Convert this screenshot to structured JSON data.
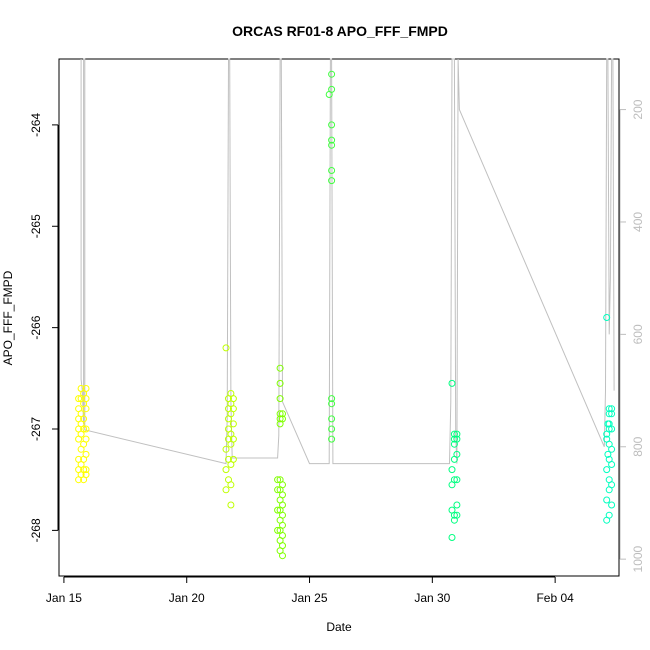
{
  "chart_data": {
    "type": "scatter",
    "title": "ORCAS RF01-8 APO_FFF_FMPD",
    "xlabel": "Date",
    "ylabel": "APO_FFF_FMPD",
    "x_tick_labels": [
      "Jan 15",
      "Jan 20",
      "Jan 25",
      "Jan 30",
      "Feb 04"
    ],
    "x_tick_values": [
      15,
      20,
      25,
      30,
      35
    ],
    "xlim": [
      14.8,
      37.6
    ],
    "y_ticks": [
      -264,
      -265,
      -266,
      -267,
      -268
    ],
    "ylim": [
      -268.45,
      -263.35
    ],
    "y2_ticks": [
      200,
      400,
      600,
      800,
      1000
    ],
    "y2lim": [
      1030,
      110
    ],
    "y2_color": "#bdbdbd",
    "grid": false,
    "legend": "none",
    "series": [
      {
        "color": "#ffff00",
        "points": [
          [
            15.6,
            -266.7
          ],
          [
            15.6,
            -266.8
          ],
          [
            15.6,
            -266.9
          ],
          [
            15.6,
            -267.0
          ],
          [
            15.6,
            -267.1
          ],
          [
            15.6,
            -267.3
          ],
          [
            15.6,
            -267.4
          ],
          [
            15.6,
            -267.5
          ],
          [
            15.7,
            -266.6
          ],
          [
            15.7,
            -266.7
          ],
          [
            15.7,
            -266.85
          ],
          [
            15.7,
            -266.95
          ],
          [
            15.7,
            -267.05
          ],
          [
            15.7,
            -267.2
          ],
          [
            15.7,
            -267.35
          ],
          [
            15.7,
            -267.45
          ],
          [
            15.8,
            -266.65
          ],
          [
            15.8,
            -266.75
          ],
          [
            15.8,
            -266.9
          ],
          [
            15.8,
            -267.0
          ],
          [
            15.8,
            -267.15
          ],
          [
            15.8,
            -267.3
          ],
          [
            15.8,
            -267.4
          ],
          [
            15.8,
            -267.5
          ],
          [
            15.9,
            -266.6
          ],
          [
            15.9,
            -266.7
          ],
          [
            15.9,
            -266.8
          ],
          [
            15.9,
            -267.0
          ],
          [
            15.9,
            -267.1
          ],
          [
            15.9,
            -267.25
          ],
          [
            15.9,
            -267.4
          ],
          [
            15.9,
            -267.45
          ]
        ]
      },
      {
        "color": "#bfff00",
        "points": [
          [
            21.6,
            -266.2
          ],
          [
            21.6,
            -267.2
          ],
          [
            21.6,
            -267.4
          ],
          [
            21.6,
            -267.6
          ],
          [
            21.7,
            -266.7
          ],
          [
            21.7,
            -266.8
          ],
          [
            21.7,
            -266.9
          ],
          [
            21.7,
            -267.0
          ],
          [
            21.7,
            -267.1
          ],
          [
            21.7,
            -267.3
          ],
          [
            21.7,
            -267.5
          ],
          [
            21.8,
            -266.65
          ],
          [
            21.8,
            -266.75
          ],
          [
            21.8,
            -266.85
          ],
          [
            21.8,
            -267.05
          ],
          [
            21.8,
            -267.15
          ],
          [
            21.8,
            -267.35
          ],
          [
            21.8,
            -267.55
          ],
          [
            21.8,
            -267.75
          ],
          [
            21.9,
            -266.7
          ],
          [
            21.9,
            -266.8
          ],
          [
            21.9,
            -266.95
          ],
          [
            21.9,
            -267.1
          ],
          [
            21.9,
            -267.3
          ]
        ]
      },
      {
        "color": "#80ff00",
        "points": [
          [
            23.8,
            -266.4
          ],
          [
            23.8,
            -266.55
          ],
          [
            23.8,
            -266.7
          ],
          [
            23.8,
            -266.85
          ],
          [
            23.8,
            -266.9
          ],
          [
            23.8,
            -266.95
          ],
          [
            23.8,
            -267.5
          ],
          [
            23.8,
            -267.6
          ],
          [
            23.8,
            -267.7
          ],
          [
            23.8,
            -267.8
          ],
          [
            23.8,
            -267.9
          ],
          [
            23.8,
            -268.0
          ],
          [
            23.8,
            -268.1
          ],
          [
            23.8,
            -268.2
          ],
          [
            23.9,
            -266.85
          ],
          [
            23.9,
            -266.9
          ],
          [
            23.9,
            -267.55
          ],
          [
            23.9,
            -267.65
          ],
          [
            23.9,
            -267.75
          ],
          [
            23.9,
            -267.85
          ],
          [
            23.9,
            -267.95
          ],
          [
            23.9,
            -268.05
          ],
          [
            23.9,
            -268.15
          ],
          [
            23.9,
            -268.25
          ],
          [
            23.7,
            -267.5
          ],
          [
            23.7,
            -267.6
          ],
          [
            23.7,
            -267.8
          ],
          [
            23.7,
            -268.0
          ]
        ]
      },
      {
        "color": "#40ff40",
        "points": [
          [
            25.9,
            -263.5
          ],
          [
            25.9,
            -263.65
          ],
          [
            25.9,
            -264.0
          ],
          [
            25.9,
            -264.15
          ],
          [
            25.9,
            -264.2
          ],
          [
            25.9,
            -264.45
          ],
          [
            25.9,
            -264.55
          ],
          [
            25.9,
            -266.7
          ],
          [
            25.9,
            -266.75
          ],
          [
            25.9,
            -266.9
          ],
          [
            25.9,
            -267.0
          ],
          [
            25.9,
            -267.1
          ],
          [
            25.8,
            -263.7
          ]
        ]
      },
      {
        "color": "#00ff80",
        "points": [
          [
            30.8,
            -266.55
          ],
          [
            30.8,
            -267.4
          ],
          [
            30.8,
            -267.55
          ],
          [
            30.8,
            -267.8
          ],
          [
            30.8,
            -268.07
          ],
          [
            30.9,
            -267.05
          ],
          [
            30.9,
            -267.1
          ],
          [
            30.9,
            -267.15
          ],
          [
            30.9,
            -267.3
          ],
          [
            30.9,
            -267.5
          ],
          [
            30.9,
            -267.85
          ],
          [
            30.9,
            -267.9
          ],
          [
            31.0,
            -267.05
          ],
          [
            31.0,
            -267.1
          ],
          [
            31.0,
            -267.25
          ],
          [
            31.0,
            -267.5
          ],
          [
            31.0,
            -267.75
          ],
          [
            31.0,
            -267.85
          ]
        ]
      },
      {
        "color": "#00ffbf",
        "points": [
          [
            37.1,
            -265.9
          ],
          [
            37.1,
            -267.05
          ],
          [
            37.1,
            -267.1
          ],
          [
            37.1,
            -267.4
          ],
          [
            37.1,
            -267.7
          ],
          [
            37.1,
            -267.9
          ],
          [
            37.2,
            -266.8
          ],
          [
            37.2,
            -266.85
          ],
          [
            37.2,
            -266.95
          ],
          [
            37.2,
            -267.0
          ],
          [
            37.2,
            -267.15
          ],
          [
            37.2,
            -267.3
          ],
          [
            37.2,
            -267.5
          ],
          [
            37.2,
            -267.6
          ],
          [
            37.2,
            -267.85
          ],
          [
            37.3,
            -266.8
          ],
          [
            37.3,
            -266.85
          ],
          [
            37.3,
            -267.0
          ],
          [
            37.3,
            -267.2
          ],
          [
            37.3,
            -267.35
          ],
          [
            37.3,
            -267.55
          ],
          [
            37.3,
            -267.75
          ],
          [
            37.15,
            -266.95
          ],
          [
            37.15,
            -267.25
          ]
        ]
      }
    ],
    "altitude_line": {
      "color": "#c0c0c0",
      "points": [
        [
          15.7,
          110
        ],
        [
          15.7,
          680
        ],
        [
          15.75,
          700
        ],
        [
          15.8,
          760
        ],
        [
          15.8,
          110
        ],
        [
          15.85,
          110
        ],
        [
          15.85,
          770
        ],
        [
          21.6,
          830
        ],
        [
          21.65,
          750
        ],
        [
          21.7,
          110
        ],
        [
          21.75,
          110
        ],
        [
          21.8,
          720
        ],
        [
          21.85,
          820
        ],
        [
          23.7,
          820
        ],
        [
          23.75,
          780
        ],
        [
          23.8,
          110
        ],
        [
          23.85,
          110
        ],
        [
          23.9,
          720
        ],
        [
          25.0,
          830
        ],
        [
          25.8,
          830
        ],
        [
          25.85,
          110
        ],
        [
          25.9,
          110
        ],
        [
          25.95,
          830
        ],
        [
          30.7,
          830
        ],
        [
          30.75,
          720
        ],
        [
          30.8,
          110
        ],
        [
          30.9,
          110
        ],
        [
          30.95,
          780
        ],
        [
          31.0,
          830
        ],
        [
          31.05,
          110
        ],
        [
          31.1,
          200
        ],
        [
          37.0,
          800
        ],
        [
          37.05,
          700
        ],
        [
          37.1,
          110
        ],
        [
          37.15,
          110
        ],
        [
          37.2,
          600
        ],
        [
          37.25,
          500
        ],
        [
          37.3,
          110
        ],
        [
          37.35,
          110
        ],
        [
          37.4,
          700
        ]
      ]
    }
  }
}
